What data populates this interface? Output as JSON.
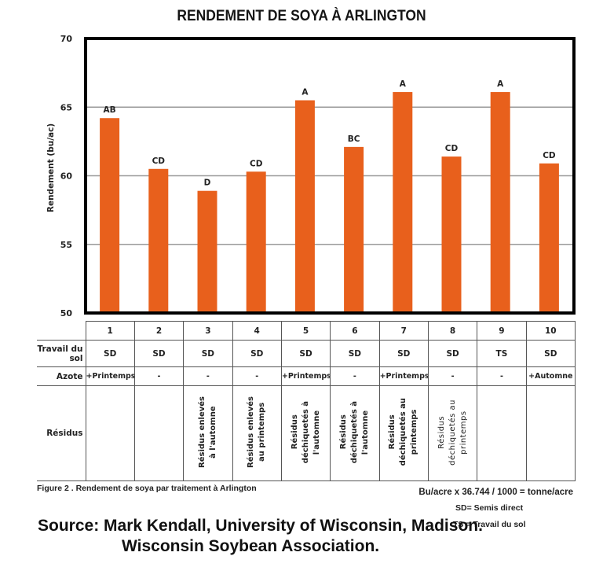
{
  "chart_data": {
    "type": "bar",
    "title": "RENDEMENT DE SOYA À ARLINGTON",
    "xlabel": "",
    "ylabel": "Rendement (bu/ac)",
    "ylim": [
      50,
      70
    ],
    "yticks": [
      "50",
      "55",
      "60",
      "65",
      "70"
    ],
    "grid": true,
    "bar_color": "#E8601C",
    "categories": [
      "1",
      "2",
      "3",
      "4",
      "5",
      "6",
      "7",
      "8",
      "9",
      "10"
    ],
    "values": [
      64.2,
      60.5,
      58.9,
      60.3,
      65.5,
      62.1,
      66.1,
      61.4,
      66.1,
      60.9
    ],
    "data_labels": [
      "AB",
      "CD",
      "D",
      "CD",
      "A",
      "BC",
      "A",
      "CD",
      "A",
      "CD"
    ]
  },
  "table": {
    "row_labels": {
      "travail": "Travail du sol",
      "azote": "Azote",
      "residus": "Résidus"
    },
    "columns": [
      {
        "num": "1",
        "travail": "SD",
        "azote": "+Printemps",
        "residus": ""
      },
      {
        "num": "2",
        "travail": "SD",
        "azote": "-",
        "residus": ""
      },
      {
        "num": "3",
        "travail": "SD",
        "azote": "-",
        "residus": "Résidus enlevés\nà l'automne"
      },
      {
        "num": "4",
        "travail": "SD",
        "azote": "-",
        "residus": "Résidus enlevés\nau printemps"
      },
      {
        "num": "5",
        "travail": "SD",
        "azote": "+Printemps",
        "residus": "Résidus\ndéchiquetés à\nl'automne"
      },
      {
        "num": "6",
        "travail": "SD",
        "azote": "-",
        "residus": "Résidus\ndéchiquetés à\nl'automne"
      },
      {
        "num": "7",
        "travail": "SD",
        "azote": "+Printemps",
        "residus": "Résidus\ndéchiquetés au\nprintemps"
      },
      {
        "num": "8",
        "travail": "SD",
        "azote": "-",
        "residus": "Résidus\ndéchiquetés au\nprintemps"
      },
      {
        "num": "9",
        "travail": "TS",
        "azote": "-",
        "residus": ""
      },
      {
        "num": "10",
        "travail": "SD",
        "azote": "+Automne",
        "residus": ""
      }
    ]
  },
  "caption": "Figure 2 . Rendement de soya par traitement à Arlington",
  "conversion": "Bu/acre x 36.744 / 1000 = tonne/acre",
  "legend": {
    "sd": "SD= Semis direct",
    "ts": "TS = Travail du sol"
  },
  "source": {
    "line1": "Source: Mark Kendall, University of Wisconsin, Madison.",
    "line2": "Wisconsin Soybean Association."
  }
}
